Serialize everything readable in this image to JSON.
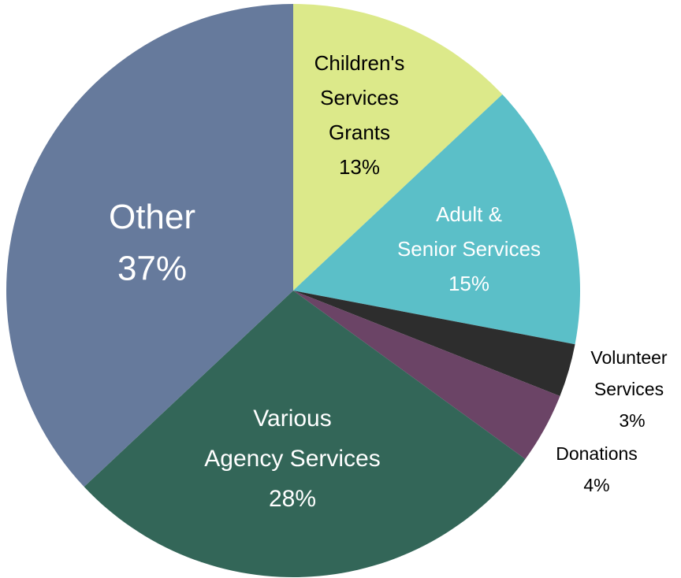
{
  "chart_data": {
    "type": "pie",
    "categories": [
      "Children's Services Grants",
      "Adult & Senior Services",
      "Volunteer Services",
      "Donations",
      "Various Agency Services",
      "Other"
    ],
    "values": [
      13,
      15,
      3,
      4,
      28,
      37
    ],
    "value_labels": [
      "13%",
      "15%",
      "3%",
      "4%",
      "28%",
      "37%"
    ],
    "colors": [
      "#dce98a",
      "#5bbfc8",
      "#2d2d2d",
      "#6b4466",
      "#336658",
      "#667a9c"
    ]
  }
}
